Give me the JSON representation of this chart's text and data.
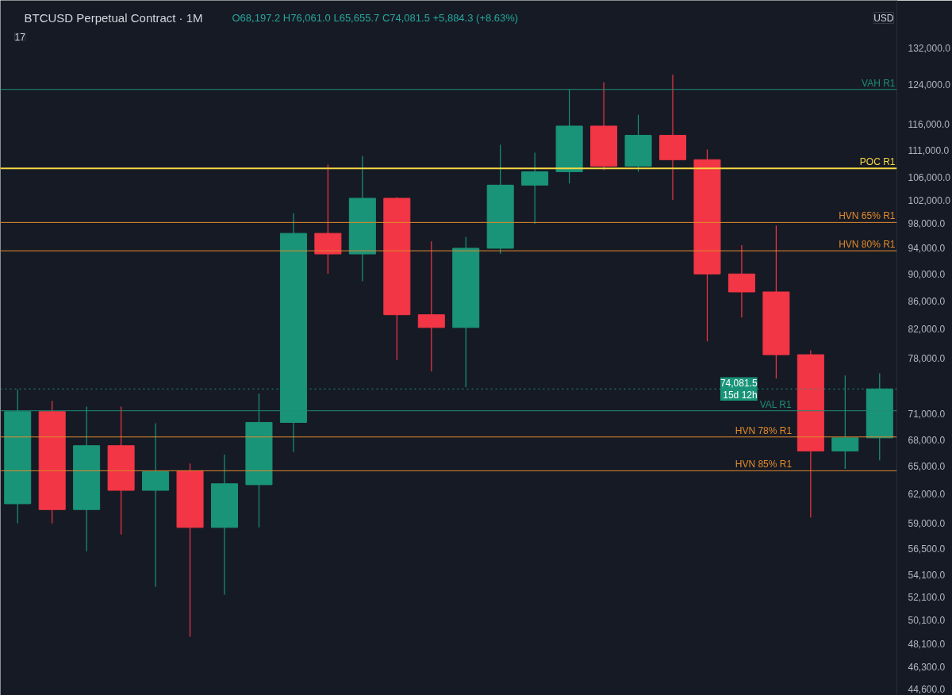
{
  "chart_data": {
    "type": "candlestick",
    "title": "BTCUSD Perpetual Contract · 1M",
    "annotations": [
      "O68,197.2 H76,061.0 L65,655.7 C74,081.5 +5,884.3 (+8.63%)",
      "17",
      "USD"
    ],
    "categories": [
      null,
      null,
      null,
      null,
      null,
      null,
      null,
      null,
      null,
      null,
      null,
      null,
      null,
      null,
      null,
      null,
      null,
      null,
      null,
      null,
      null,
      null,
      null,
      null,
      null,
      null
    ],
    "ohlc": [
      [
        61000,
        74000,
        59000,
        71300
      ],
      [
        71300,
        72600,
        59000,
        60400
      ],
      [
        60400,
        71900,
        56300,
        67300
      ],
      [
        67300,
        71900,
        57900,
        62400
      ],
      [
        62400,
        69900,
        53000,
        64400
      ],
      [
        64500,
        65300,
        48700,
        58600
      ],
      [
        58600,
        66300,
        52300,
        63100
      ],
      [
        63000,
        73500,
        58600,
        70000
      ],
      [
        70000,
        99700,
        66600,
        96400
      ],
      [
        96400,
        108300,
        90000,
        93100
      ],
      [
        93100,
        109900,
        88900,
        102300
      ],
      [
        102300,
        102500,
        77800,
        84000
      ],
      [
        84000,
        95100,
        76300,
        82200
      ],
      [
        82200,
        95800,
        74300,
        94000
      ],
      [
        94000,
        112000,
        93100,
        104600
      ],
      [
        104600,
        110500,
        98000,
        107000
      ],
      [
        107000,
        123100,
        104900,
        115600
      ],
      [
        115600,
        124500,
        107300,
        108000
      ],
      [
        108000,
        117800,
        107000,
        113800
      ],
      [
        113800,
        126100,
        102000,
        109200
      ],
      [
        109200,
        111100,
        80300,
        90000
      ],
      [
        90000,
        94500,
        83600,
        87300
      ],
      [
        87300,
        97700,
        75400,
        78500
      ],
      [
        78500,
        79100,
        59600,
        66700
      ],
      [
        66700,
        75800,
        64700,
        68200
      ],
      [
        68197.2,
        76061.0,
        65655.7,
        74081.5
      ]
    ],
    "colors": [
      "#1a9479",
      "#f23645",
      "#1a9479",
      "#f23645",
      "#1a9479",
      "#f23645",
      "#1a9479",
      "#1a9479",
      "#1a9479",
      "#f23645",
      "#1a9479",
      "#f23645",
      "#f23645",
      "#1a9479",
      "#1a9479",
      "#1a9479",
      "#1a9479",
      "#f23645",
      "#1a9479",
      "#f23645",
      "#f23645",
      "#f23645",
      "#f23645",
      "#f23645",
      "#1a9479",
      "#1a9479"
    ],
    "log": "y",
    "ylim": [
      44100,
      143000
    ],
    "yticks": [
      {
        "value": 44600,
        "label": "44,600.0"
      },
      {
        "value": 46300,
        "label": "46,300.0"
      },
      {
        "value": 48100,
        "label": "48,100.0"
      },
      {
        "value": 50100,
        "label": "50,100.0"
      },
      {
        "value": 52100,
        "label": "52,100.0"
      },
      {
        "value": 54100,
        "label": "54,100.0"
      },
      {
        "value": 56500,
        "label": "56,500.0"
      },
      {
        "value": 59000,
        "label": "59,000.0"
      },
      {
        "value": 62000,
        "label": "62,000.0"
      },
      {
        "value": 65000,
        "label": "65,000.0"
      },
      {
        "value": 68000,
        "label": "68,000.0"
      },
      {
        "value": 71000,
        "label": "71,000.0"
      },
      {
        "value": 78000,
        "label": "78,000.0"
      },
      {
        "value": 82000,
        "label": "82,000.0"
      },
      {
        "value": 86000,
        "label": "86,000.0"
      },
      {
        "value": 90000,
        "label": "90,000.0"
      },
      {
        "value": 94000,
        "label": "94,000.0"
      },
      {
        "value": 98000,
        "label": "98,000.0"
      },
      {
        "value": 102000,
        "label": "102,000.0"
      },
      {
        "value": 106000,
        "label": "106,000.0"
      },
      {
        "value": 111000,
        "label": "111,000.0"
      },
      {
        "value": 116000,
        "label": "116,000.0"
      },
      {
        "value": 124000,
        "label": "124,000.0"
      },
      {
        "value": 132000,
        "label": "132,000.0"
      }
    ],
    "ref_lines": [
      {
        "axis": "y",
        "value": 123000,
        "label": "VAH R1",
        "color": "#1e8c74"
      },
      {
        "axis": "y",
        "value": 107600,
        "label": "POC R1",
        "color": "#f5d742"
      },
      {
        "axis": "y",
        "value": 98200,
        "label": "HVN 65% R1",
        "color": "#e08a2a"
      },
      {
        "axis": "y",
        "value": 93600,
        "label": "HVN 80% R1",
        "color": "#e08a2a"
      },
      {
        "axis": "y",
        "value": 71400,
        "label": "VAL R1",
        "color": "#1e8c74"
      },
      {
        "axis": "y",
        "value": 68300,
        "label": "HVN 78% R1",
        "color": "#e08a2a"
      },
      {
        "axis": "y",
        "value": 64500,
        "label": "HVN 85% R1",
        "color": "#e08a2a"
      },
      {
        "axis": "y",
        "value": 74081.5,
        "label": "74,081.5\n15d 12h",
        "color": "#1a9479",
        "line_style": "dotted"
      }
    ],
    "tick_labels": "y",
    "grid": false
  }
}
